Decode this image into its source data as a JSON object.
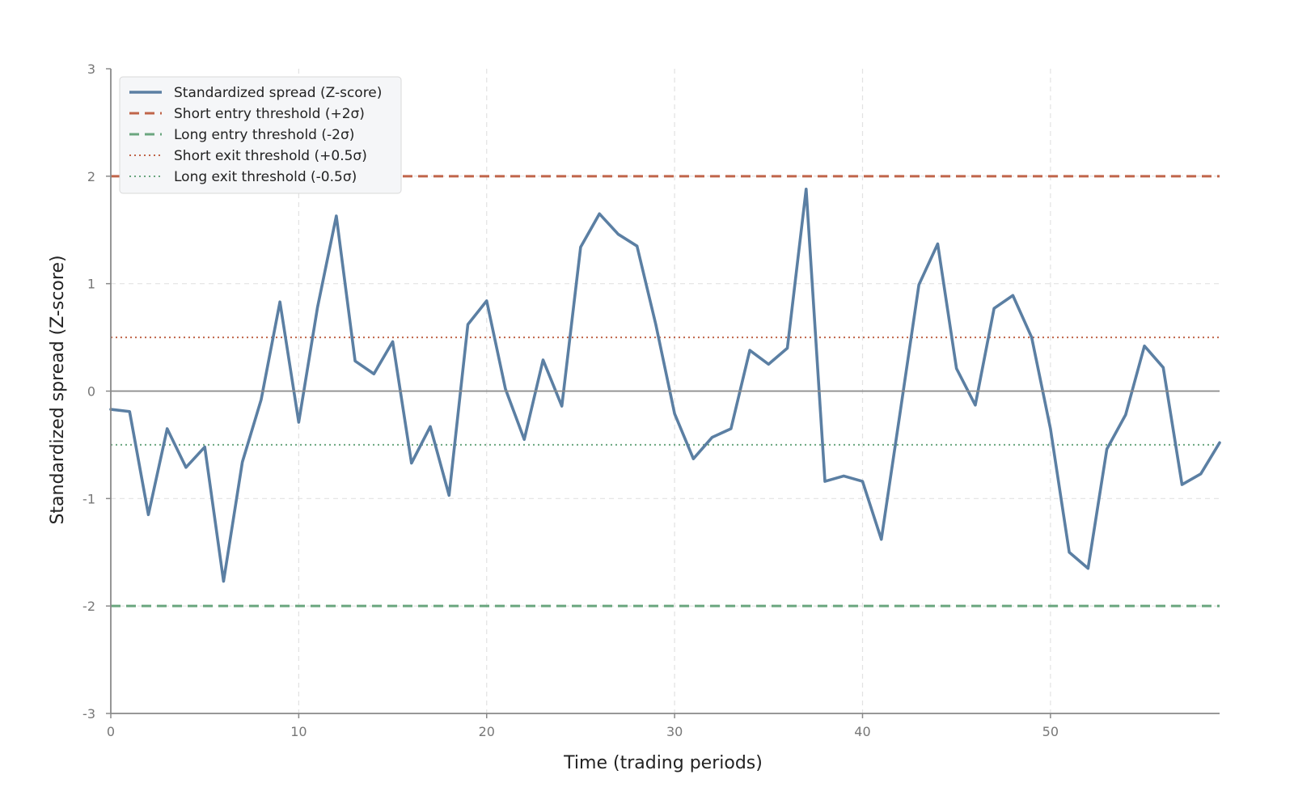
{
  "chart_data": {
    "type": "line",
    "title": "",
    "xlabel": "Time (trading periods)",
    "ylabel": "Standardized spread (Z-score)",
    "xlim": [
      0,
      59
    ],
    "ylim": [
      -3,
      3
    ],
    "x_ticks": [
      0,
      10,
      20,
      30,
      40,
      50
    ],
    "y_ticks": [
      -3,
      -2,
      -1,
      0,
      1,
      2,
      3
    ],
    "grid": true,
    "legend_position": "top-left",
    "series": [
      {
        "name": "Standardized spread (Z-score)",
        "color": "#5b7fa3",
        "style": "solid",
        "x": [
          0,
          1,
          2,
          3,
          4,
          5,
          6,
          7,
          8,
          9,
          10,
          11,
          12,
          13,
          14,
          15,
          16,
          17,
          18,
          19,
          20,
          21,
          22,
          23,
          24,
          25,
          26,
          27,
          28,
          29,
          30,
          31,
          32,
          33,
          34,
          35,
          36,
          37,
          38,
          39,
          40,
          41,
          42,
          43,
          44,
          45,
          46,
          47,
          48,
          49,
          50,
          51,
          52,
          53,
          54,
          55,
          56,
          57,
          58,
          59
        ],
        "values": [
          -0.17,
          -0.19,
          -1.15,
          -0.35,
          -0.71,
          -0.52,
          -1.77,
          -0.66,
          -0.08,
          0.83,
          -0.29,
          0.78,
          1.63,
          0.28,
          0.16,
          0.46,
          -0.67,
          -0.33,
          -0.97,
          0.62,
          0.84,
          0.02,
          -0.45,
          0.29,
          -0.14,
          1.34,
          1.65,
          1.46,
          1.35,
          0.62,
          -0.21,
          -0.63,
          -0.43,
          -0.35,
          0.38,
          0.25,
          0.4,
          1.88,
          -0.84,
          -0.79,
          -0.84,
          -1.38,
          -0.2,
          0.99,
          1.37,
          0.21,
          -0.13,
          0.77,
          0.89,
          0.5,
          -0.35,
          -1.5,
          -1.65,
          -0.54,
          -0.22,
          0.42,
          0.22,
          -0.87,
          -0.77,
          -0.48
        ]
      },
      {
        "name": "Short entry threshold (+2σ)",
        "color": "#c0654a",
        "style": "dashed",
        "value": 2
      },
      {
        "name": "Long entry threshold (-2σ)",
        "color": "#6aa67f",
        "style": "dashed",
        "value": -2
      },
      {
        "name": "Short exit threshold (+0.5σ)",
        "color": "#c0654a",
        "style": "dotted",
        "value": 0.5
      },
      {
        "name": "Long exit threshold (-0.5σ)",
        "color": "#6aa67f",
        "style": "dotted",
        "value": -0.5
      }
    ]
  }
}
